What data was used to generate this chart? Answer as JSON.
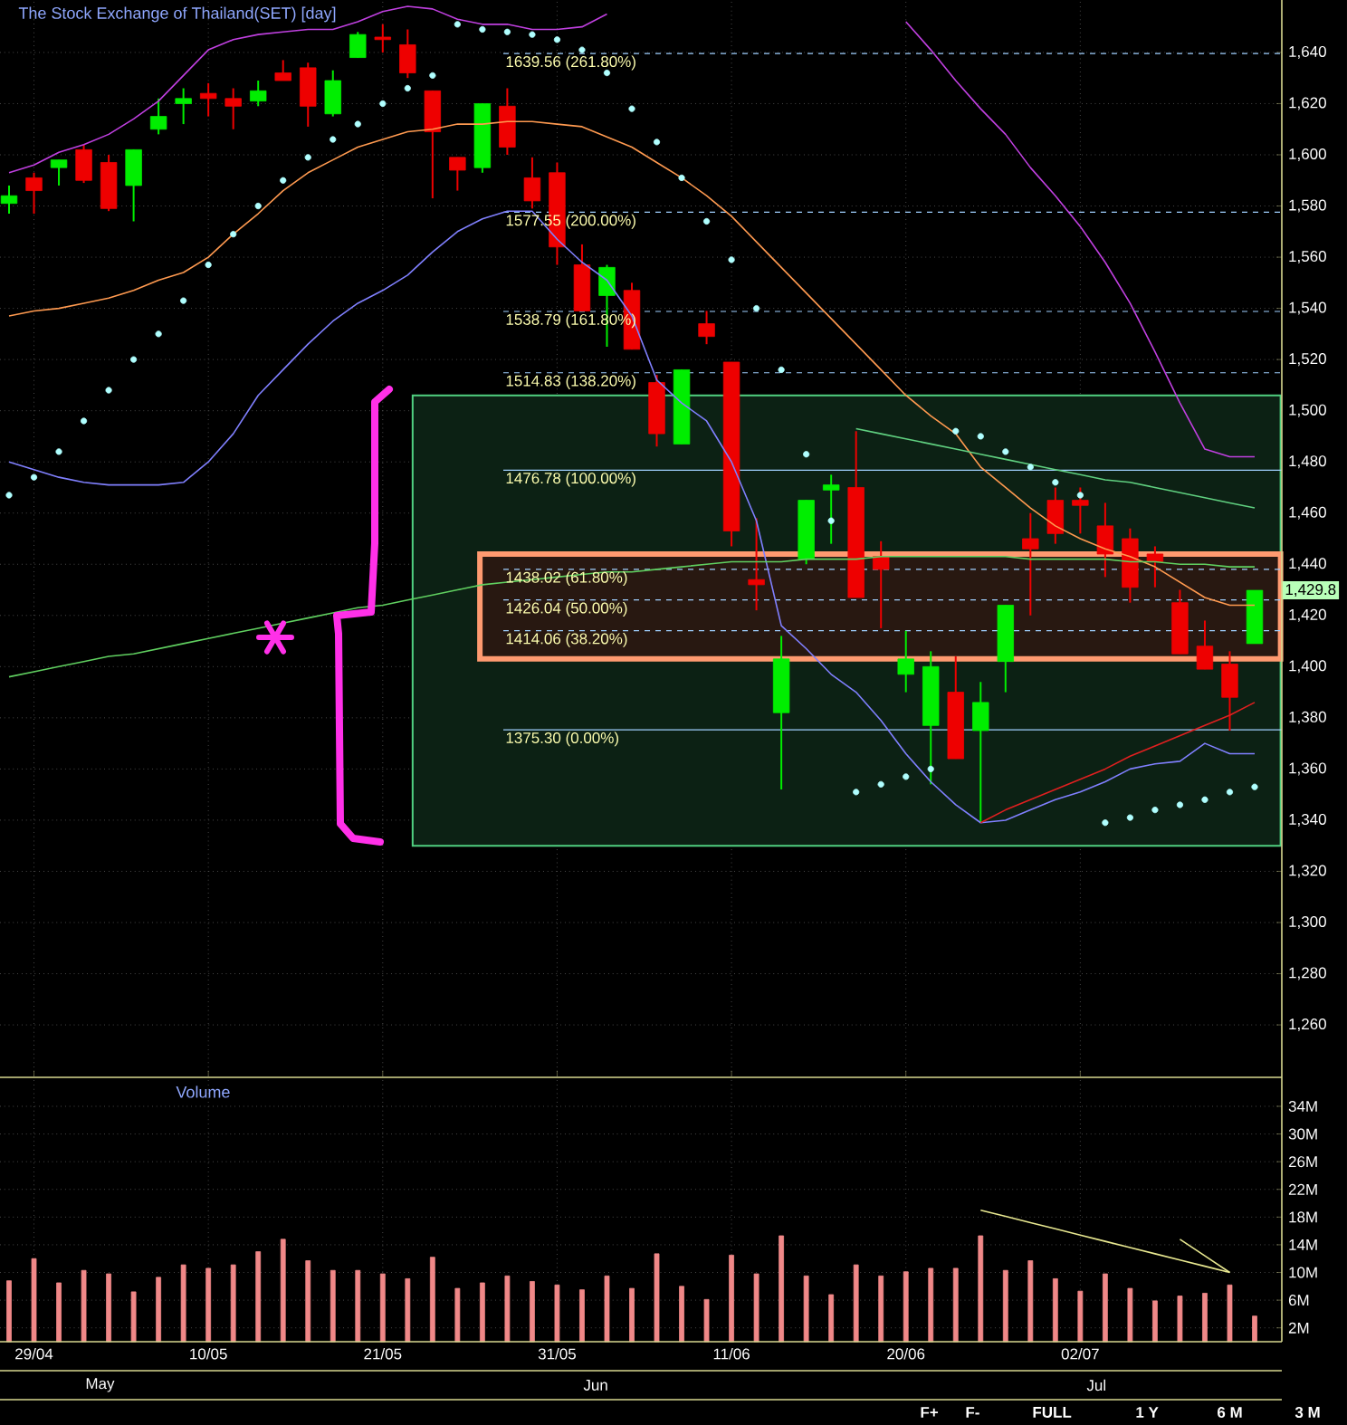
{
  "chart_data": [
    {
      "type": "candlestick",
      "title": "The Stock Exchange of Thailand(SET) [day]",
      "categories": [
        null,
        null,
        null,
        null,
        null,
        null,
        null,
        null,
        null,
        null,
        null,
        null,
        null,
        null,
        null,
        null,
        null,
        null,
        null,
        null,
        null,
        null,
        null,
        null,
        null,
        null,
        null,
        null,
        null,
        null,
        null,
        null,
        null,
        null,
        null,
        null,
        null,
        null,
        null,
        null,
        null,
        null,
        null,
        null,
        null,
        null,
        null,
        null,
        null,
        null,
        null
      ],
      "tick_labels": "y",
      "grid": true,
      "ylim": [
        1240,
        1660
      ],
      "yticks": [
        {
          "value": 1260,
          "label": "1,260"
        },
        {
          "value": 1280,
          "label": "1,280"
        },
        {
          "value": 1300,
          "label": "1,300"
        },
        {
          "value": 1320,
          "label": "1,320"
        },
        {
          "value": 1340,
          "label": "1,340"
        },
        {
          "value": 1360,
          "label": "1,360"
        },
        {
          "value": 1380,
          "label": "1,380"
        },
        {
          "value": 1400,
          "label": "1,400"
        },
        {
          "value": 1420,
          "label": "1,420"
        },
        {
          "value": 1440,
          "label": "1,440"
        },
        {
          "value": 1460,
          "label": "1,460"
        },
        {
          "value": 1480,
          "label": "1,480"
        },
        {
          "value": 1500,
          "label": "1,500"
        },
        {
          "value": 1520,
          "label": "1,520"
        },
        {
          "value": 1540,
          "label": "1,540"
        },
        {
          "value": 1560,
          "label": "1,560"
        },
        {
          "value": 1580,
          "label": "1,580"
        },
        {
          "value": 1600,
          "label": "1,600"
        },
        {
          "value": 1620,
          "label": "1,620"
        },
        {
          "value": 1640,
          "label": "1,640"
        }
      ],
      "ohlc": [
        [
          1581,
          1588,
          1577,
          1584
        ],
        [
          1591,
          1593,
          1577,
          1586
        ],
        [
          1595,
          1598,
          1588,
          1598
        ],
        [
          1602,
          1604,
          1589,
          1590
        ],
        [
          1597,
          1600,
          1578,
          1579
        ],
        [
          1588,
          1602,
          1574,
          1602
        ],
        [
          1610,
          1622,
          1608,
          1615
        ],
        [
          1620,
          1626,
          1612,
          1622
        ],
        [
          1624,
          1628,
          1615,
          1622
        ],
        [
          1622,
          1626,
          1610,
          1619
        ],
        [
          1621,
          1629,
          1619,
          1625
        ],
        [
          1632,
          1637,
          1629,
          1629
        ],
        [
          1634,
          1636,
          1611,
          1619
        ],
        [
          1616,
          1633,
          1615,
          1629
        ],
        [
          1638,
          1648,
          1638,
          1647
        ],
        [
          1646,
          1651,
          1640,
          1645
        ],
        [
          1643,
          1649,
          1630,
          1632
        ],
        [
          1625,
          1625,
          1583,
          1609
        ],
        [
          1599,
          1599,
          1586,
          1594
        ],
        [
          1595,
          1620,
          1593,
          1620
        ],
        [
          1619,
          1626,
          1600,
          1603
        ],
        [
          1591,
          1599,
          1579,
          1582
        ],
        [
          1593,
          1597,
          1557,
          1564
        ],
        [
          1557,
          1565,
          1539,
          1539
        ],
        [
          1545,
          1557,
          1525,
          1556
        ],
        [
          1547,
          1550,
          1524,
          1524
        ],
        [
          1511,
          1514,
          1486,
          1491
        ],
        [
          1487,
          1516,
          1487,
          1516
        ],
        [
          1534,
          1539,
          1526,
          1529
        ],
        [
          1519,
          1519,
          1447,
          1453
        ],
        [
          1434,
          1458,
          1422,
          1432
        ],
        [
          1382,
          1412,
          1352,
          1403
        ],
        [
          1442,
          1465,
          1440,
          1465
        ],
        [
          1469,
          1475,
          1448,
          1471
        ],
        [
          1470,
          1492,
          1427,
          1427
        ],
        [
          1443,
          1449,
          1415,
          1438
        ],
        [
          1397,
          1414,
          1390,
          1403
        ],
        [
          1377,
          1406,
          1354,
          1400
        ],
        [
          1390,
          1404,
          1364,
          1364
        ],
        [
          1375,
          1394,
          1339,
          1386
        ],
        [
          1402,
          1424,
          1390,
          1424
        ],
        [
          1450,
          1460,
          1420,
          1446
        ],
        [
          1465,
          1470,
          1448,
          1452
        ],
        [
          1465,
          1470,
          1452,
          1463
        ],
        [
          1455,
          1464,
          1435,
          1444
        ],
        [
          1450,
          1454,
          1425,
          1431
        ],
        [
          1444,
          1447,
          1431,
          1441
        ],
        [
          1425,
          1430,
          1405,
          1405
        ],
        [
          1408,
          1418,
          1399,
          1399
        ],
        [
          1401,
          1406,
          1375,
          1388
        ],
        [
          1409,
          1429.8,
          1409,
          1429.8
        ]
      ],
      "series": [
        {
          "type": "line",
          "color": "#c040e0",
          "values": [
            1593,
            1596,
            1601,
            1604,
            1608,
            1614,
            1621,
            1631,
            1641,
            1645,
            1647,
            1648,
            1649,
            1649,
            1652,
            1656,
            1658,
            1657,
            1653,
            1651,
            1651,
            1649,
            1649,
            1650,
            1655,
            null,
            null,
            null,
            null,
            null,
            null,
            null,
            null,
            null,
            null,
            null,
            1652,
            1641,
            1629,
            1618,
            1608,
            1595,
            1584,
            1572,
            1558,
            1542,
            1523,
            1503,
            1485,
            1482,
            1482
          ]
        },
        {
          "type": "line",
          "color": "#ff9a50",
          "values": [
            1537,
            1539,
            1540,
            1542,
            1544,
            1547,
            1551,
            1554,
            1560,
            1569,
            1577,
            1586,
            1593,
            1598,
            1603,
            1606,
            1609,
            1610,
            1612,
            1612,
            1613,
            1613,
            1612,
            1611,
            1607,
            1603,
            1597,
            1591,
            1584,
            1576,
            1566,
            1556,
            1546,
            1536,
            1526,
            1516,
            1506,
            1498,
            1491,
            1478,
            1470,
            1462,
            1455,
            1450,
            1446,
            1443,
            1439,
            1433,
            1427,
            1424,
            1424
          ]
        },
        {
          "type": "line",
          "color": "#8080ff",
          "values": [
            1480,
            1477,
            1474,
            1472,
            1471,
            1471,
            1471,
            1472,
            1480,
            1491,
            1506,
            1516,
            1526,
            1535,
            1542,
            1547,
            1553,
            1562,
            1570,
            1575,
            1578,
            1578,
            1567,
            1558,
            1551,
            1537,
            1512,
            1503,
            1496,
            1480,
            1457,
            1416,
            1407,
            1397,
            1390,
            1379,
            1366,
            1355,
            1346,
            1339,
            1340,
            1344,
            1348,
            1351,
            1355,
            1360,
            1362,
            1363,
            1370,
            1366,
            1366
          ]
        },
        {
          "type": "scatter",
          "color": "#b0ffff",
          "values": [
            1467,
            1474,
            1484,
            1496,
            1508,
            1520,
            1530,
            1543,
            1557,
            1569,
            1580,
            1590,
            1599,
            1606,
            1612,
            1620,
            1626,
            1631,
            1651,
            1649,
            1648,
            1647,
            1645,
            1641,
            1632,
            1618,
            1605,
            1591,
            1574,
            1559,
            1540,
            1516,
            1483,
            1457,
            1351,
            1354,
            1357,
            1360,
            1492,
            1490,
            1484,
            1478,
            1472,
            1467,
            1339,
            1341,
            1344,
            1346,
            1348,
            1351,
            1353
          ]
        },
        {
          "type": "line",
          "color": "#60d060",
          "values": [
            1396,
            1398,
            1400,
            1402,
            1404,
            1405,
            1407,
            1409,
            1411,
            1413,
            1415,
            1417,
            1419,
            1421,
            1423,
            1424,
            1426,
            1428,
            1430,
            1432,
            1433,
            1434,
            1435,
            1436,
            1437,
            1437,
            1438,
            1439,
            1440,
            1441,
            1441,
            1441,
            1442,
            1442,
            1442,
            1443,
            1443,
            1443,
            1443,
            1443,
            1443,
            1442,
            1442,
            1442,
            1442,
            1441,
            1441,
            1440,
            1440,
            1439,
            1439
          ]
        },
        {
          "type": "line",
          "color": "#60d080",
          "values": [
            null,
            null,
            null,
            null,
            null,
            null,
            null,
            null,
            null,
            null,
            null,
            null,
            null,
            null,
            null,
            null,
            null,
            null,
            null,
            null,
            null,
            null,
            null,
            null,
            null,
            null,
            null,
            null,
            null,
            null,
            null,
            null,
            null,
            null,
            1493,
            1491,
            1489,
            1487,
            1485,
            1483,
            1481,
            1479,
            1477,
            1475,
            1473,
            1472,
            1470,
            1468,
            1466,
            1464,
            1462
          ]
        },
        {
          "type": "line",
          "color": "#e02020",
          "values": [
            null,
            null,
            null,
            null,
            null,
            null,
            null,
            null,
            null,
            null,
            null,
            null,
            null,
            null,
            null,
            null,
            null,
            null,
            null,
            null,
            null,
            null,
            null,
            null,
            null,
            null,
            null,
            null,
            null,
            null,
            null,
            null,
            null,
            null,
            null,
            null,
            null,
            null,
            null,
            1339,
            1344,
            1348,
            1352,
            1356,
            1360,
            1365,
            1369,
            1373,
            1377,
            1381,
            1386
          ]
        }
      ],
      "ref_lines": [
        {
          "axis": "y",
          "value": 1639.56,
          "label": "1639.56 (261.80%)",
          "color": "#a0d0ff",
          "line_style": "dashed"
        },
        {
          "axis": "y",
          "value": 1577.55,
          "label": "1577.55 (200.00%)",
          "color": "#a0d0ff",
          "line_style": "dashed"
        },
        {
          "axis": "y",
          "value": 1538.79,
          "label": "1538.79 (161.80%)",
          "color": "#a0d0ff",
          "line_style": "dashed"
        },
        {
          "axis": "y",
          "value": 1514.83,
          "label": "1514.83 (138.20%)",
          "color": "#a0d0ff",
          "line_style": "dashed"
        },
        {
          "axis": "y",
          "value": 1476.78,
          "label": "1476.78 (100.00%)",
          "color": "#a0d0ff",
          "line_style": "solid"
        },
        {
          "axis": "y",
          "value": 1438.02,
          "label": "1438.02 (61.80%)",
          "color": "#a0d0ff",
          "line_style": "dashed"
        },
        {
          "axis": "y",
          "value": 1426.04,
          "label": "1426.04 (50.00%)",
          "color": "#a0d0ff",
          "line_style": "dashed"
        },
        {
          "axis": "y",
          "value": 1414.06,
          "label": "1414.06 (38.20%)",
          "color": "#a0d0ff",
          "line_style": "dashed"
        },
        {
          "axis": "y",
          "value": 1375.3,
          "label": "1375.30 (0.00%)",
          "color": "#a0d0ff",
          "line_style": "solid"
        }
      ],
      "bands": [
        {
          "axis": "y",
          "from": 1330,
          "to": 1506,
          "color": "#50d080"
        },
        {
          "axis": "y",
          "from": 1403,
          "to": 1444,
          "color": "#ff9a70"
        }
      ],
      "annotations": [
        {
          "text": "1,429.8",
          "y": 1429.8
        }
      ]
    },
    {
      "type": "bar",
      "title": "Volume",
      "categories": [
        null,
        "29/04",
        null,
        null,
        null,
        null,
        null,
        null,
        "10/05",
        null,
        null,
        null,
        null,
        null,
        null,
        "21/05",
        null,
        null,
        null,
        null,
        null,
        null,
        "31/05",
        null,
        null,
        null,
        null,
        null,
        null,
        "11/06",
        null,
        null,
        null,
        null,
        null,
        null,
        "20/06",
        null,
        null,
        null,
        null,
        null,
        null,
        "02/07",
        null,
        null,
        null,
        null,
        null,
        null,
        null
      ],
      "grid": true,
      "ylim": [
        0,
        38
      ],
      "yticks": [
        {
          "value": 2,
          "label": "2M"
        },
        {
          "value": 6,
          "label": "6M"
        },
        {
          "value": 10,
          "label": "10M"
        },
        {
          "value": 14,
          "label": "14M"
        },
        {
          "value": 18,
          "label": "18M"
        },
        {
          "value": 22,
          "label": "22M"
        },
        {
          "value": 26,
          "label": "26M"
        },
        {
          "value": 30,
          "label": "30M"
        },
        {
          "value": 34,
          "label": "34M"
        }
      ],
      "series": [
        {
          "color": "#f08888",
          "values": [
            8.8,
            12.0,
            8.5,
            10.3,
            9.8,
            7.2,
            9.3,
            11.1,
            10.6,
            11.1,
            13.0,
            14.8,
            11.7,
            10.3,
            10.3,
            9.8,
            9.1,
            12.2,
            7.7,
            8.5,
            9.5,
            8.7,
            8.2,
            7.5,
            9.5,
            7.7,
            12.7,
            8.0,
            6.1,
            12.5,
            9.8,
            15.3,
            9.5,
            6.8,
            11.1,
            9.5,
            10.1,
            10.6,
            10.6,
            15.3,
            10.3,
            11.7,
            9.1,
            7.3,
            9.8,
            7.7,
            5.9,
            6.6,
            7.0,
            8.2,
            3.7
          ]
        },
        {
          "type": "line",
          "color": "#e8e890",
          "values": [
            null,
            null,
            null,
            null,
            null,
            null,
            null,
            null,
            null,
            null,
            null,
            null,
            null,
            null,
            null,
            null,
            null,
            null,
            null,
            null,
            null,
            null,
            null,
            null,
            null,
            null,
            null,
            null,
            null,
            null,
            null,
            null,
            null,
            null,
            null,
            null,
            null,
            null,
            null,
            19.0,
            18.1,
            17.2,
            16.3,
            15.4,
            14.5,
            13.6,
            12.7,
            11.8,
            10.9,
            10.0,
            null
          ]
        },
        {
          "type": "line",
          "color": "#e8e890",
          "values": [
            null,
            null,
            null,
            null,
            null,
            null,
            null,
            null,
            null,
            null,
            null,
            null,
            null,
            null,
            null,
            null,
            null,
            null,
            null,
            null,
            null,
            null,
            null,
            null,
            null,
            null,
            null,
            null,
            null,
            null,
            null,
            null,
            null,
            null,
            null,
            null,
            null,
            null,
            null,
            null,
            null,
            null,
            null,
            null,
            null,
            null,
            null,
            14.8,
            12.4,
            10.0,
            null
          ]
        }
      ],
      "annotations": [
        "May",
        "Jun",
        "Jul",
        "F+",
        "F-",
        "FULL",
        "1 Y",
        "6 M",
        "3 M"
      ]
    }
  ]
}
